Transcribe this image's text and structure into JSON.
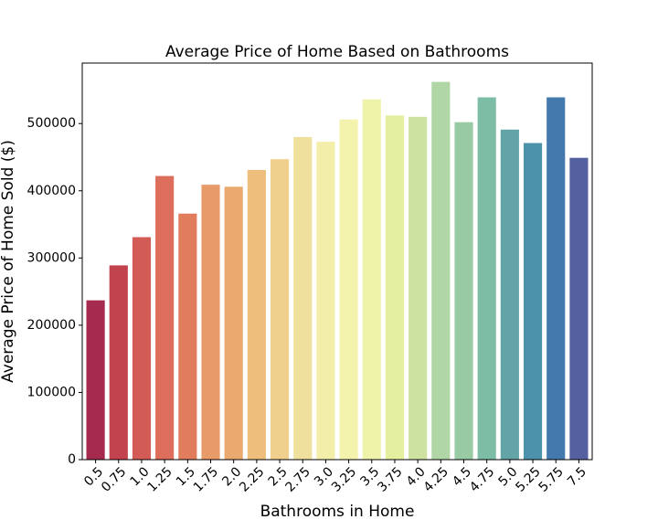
{
  "chart_data": {
    "type": "bar",
    "title": "Average Price of Home Based on Bathrooms",
    "xlabel": "Bathrooms in Home",
    "ylabel": "Average Price of Home Sold ($)",
    "ylim": [
      0,
      590000
    ],
    "yticks": [
      0,
      100000,
      200000,
      300000,
      400000,
      500000
    ],
    "ytick_labels": [
      "0",
      "100000",
      "200000",
      "300000",
      "400000",
      "500000"
    ],
    "grid": false,
    "categories": [
      "0.5",
      "0.75",
      "1.0",
      "1.25",
      "1.5",
      "1.75",
      "2.0",
      "2.25",
      "2.5",
      "2.75",
      "3.0",
      "3.25",
      "3.5",
      "3.75",
      "4.0",
      "4.25",
      "4.5",
      "4.75",
      "5.0",
      "5.25",
      "5.75",
      "7.5"
    ],
    "values": [
      237000,
      289000,
      331000,
      422000,
      366000,
      409000,
      406000,
      431000,
      447000,
      480000,
      473000,
      506000,
      536000,
      512000,
      510000,
      562000,
      502000,
      539000,
      491000,
      471000,
      539000,
      449000
    ],
    "colors": [
      "#a52a4d",
      "#c2424d",
      "#d25b55",
      "#dd6e5c",
      "#e17c5d",
      "#e99a69",
      "#eaa96f",
      "#eebe7d",
      "#efd18d",
      "#efe09d",
      "#f3efaa",
      "#f3f3ad",
      "#eff2a9",
      "#e4efa0",
      "#cde2a0",
      "#b1d6a6",
      "#98caa4",
      "#7dbda6",
      "#63a5a6",
      "#4d92ab",
      "#4379ac",
      "#54609f"
    ]
  }
}
